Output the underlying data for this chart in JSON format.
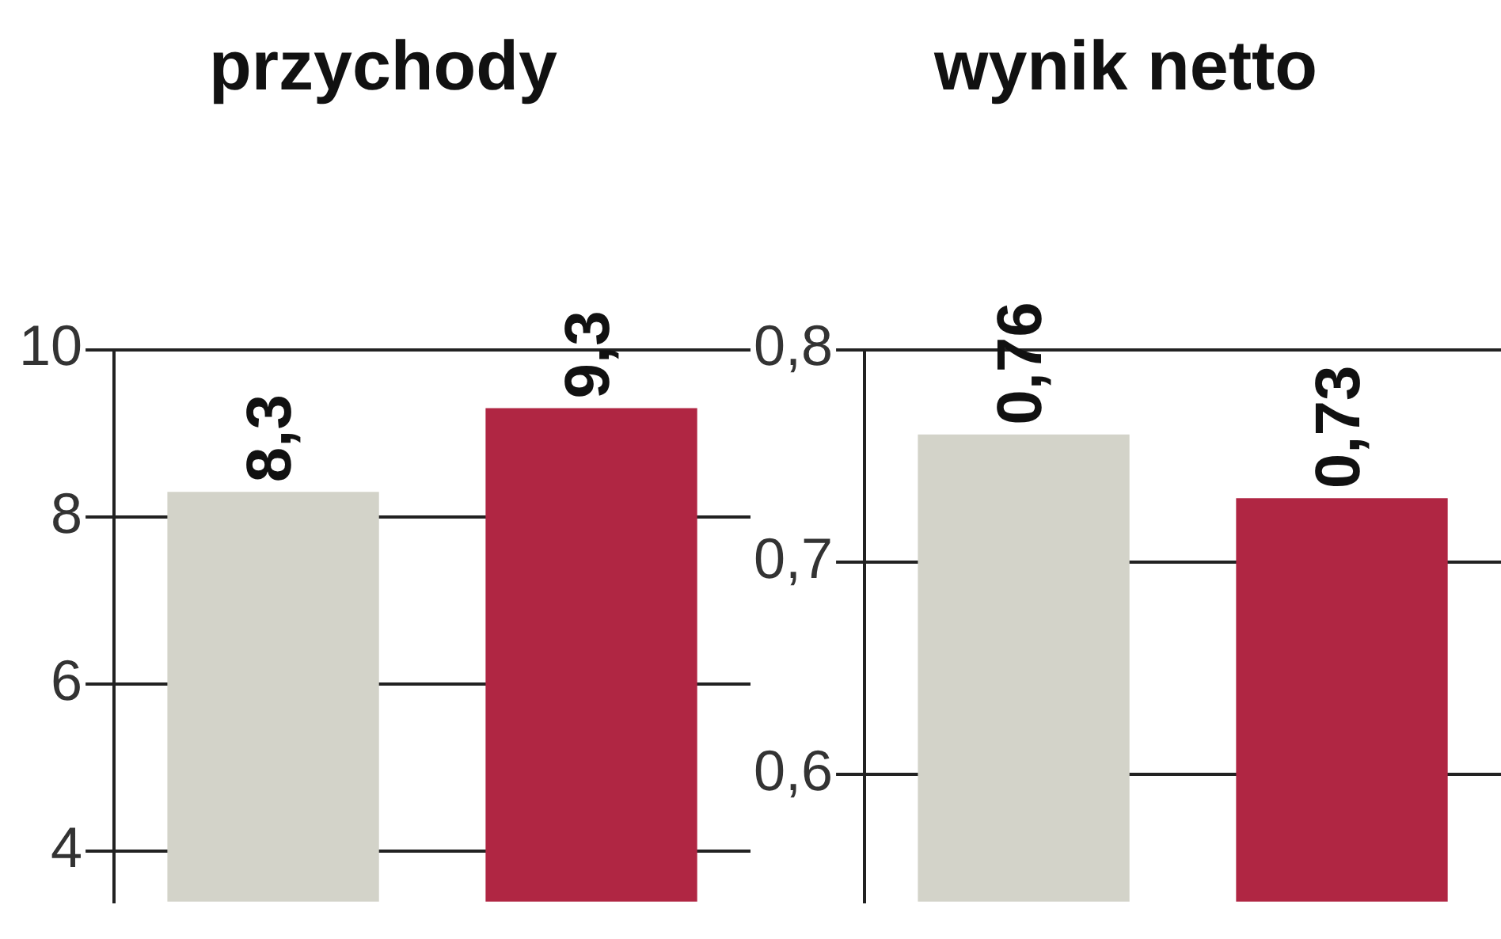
{
  "chart_data": [
    {
      "type": "bar",
      "title": "przychody",
      "categories": [
        null,
        null
      ],
      "values": [
        8.3,
        9.3
      ],
      "colors": [
        "#d3d3c9",
        "#b02643"
      ],
      "ylim": [
        3.4,
        10
      ],
      "yticks": [
        4,
        6,
        8,
        10
      ],
      "grid": "y",
      "value_labels": [
        "8,3",
        "9,3"
      ]
    },
    {
      "type": "bar",
      "title": "wynik netto",
      "categories": [
        null,
        null
      ],
      "values": [
        0.76,
        0.73
      ],
      "colors": [
        "#d3d3c9",
        "#b02643"
      ],
      "ylim": [
        0.54,
        0.8
      ],
      "yticks": [
        {
          "value": 0.6,
          "label": "0,6"
        },
        {
          "value": 0.7,
          "label": "0,7"
        },
        {
          "value": 0.8,
          "label": "0,8"
        }
      ],
      "grid": "y",
      "value_labels": [
        "0,76",
        "0,73"
      ]
    }
  ]
}
